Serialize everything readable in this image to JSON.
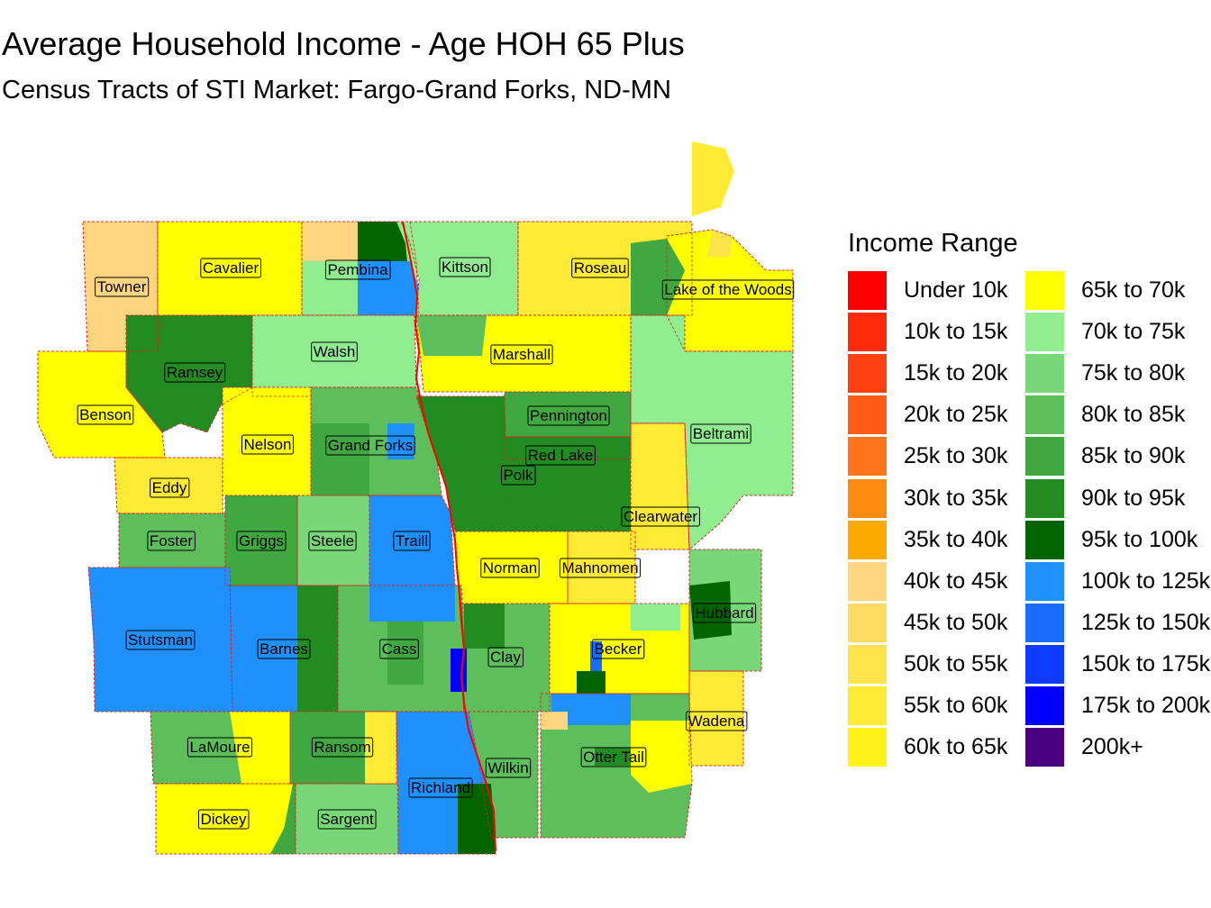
{
  "title": "Average Household Income - Age HOH 65 Plus",
  "subtitle": "Census Tracts of STI Market: Fargo-Grand Forks, ND-MN",
  "legend": {
    "title": "Income Range",
    "items": [
      {
        "label": "Under 10k",
        "color": "#ff0000"
      },
      {
        "label": "10k to 15k",
        "color": "#ff2a0a"
      },
      {
        "label": "15k to 20k",
        "color": "#ff4010"
      },
      {
        "label": "20k to 25k",
        "color": "#ff5a16"
      },
      {
        "label": "25k to 30k",
        "color": "#ff741c"
      },
      {
        "label": "30k to 35k",
        "color": "#ff8c10"
      },
      {
        "label": "35k to 40k",
        "color": "#ffaa00"
      },
      {
        "label": "40k to 45k",
        "color": "#ffd580"
      },
      {
        "label": "45k to 50k",
        "color": "#ffdb66"
      },
      {
        "label": "50k to 55k",
        "color": "#ffe34a"
      },
      {
        "label": "55k to 60k",
        "color": "#ffeb33"
      },
      {
        "label": "60k to 65k",
        "color": "#fff21a"
      },
      {
        "label": "65k to 70k",
        "color": "#ffff00"
      },
      {
        "label": "70k to 75k",
        "color": "#90ee90"
      },
      {
        "label": "75k to 80k",
        "color": "#78d878"
      },
      {
        "label": "80k to 85k",
        "color": "#5cbf5c"
      },
      {
        "label": "85k to 90k",
        "color": "#40a840"
      },
      {
        "label": "90k to 95k",
        "color": "#228b22"
      },
      {
        "label": "95k to 100k",
        "color": "#006400"
      },
      {
        "label": "100k to 125k",
        "color": "#1e90ff"
      },
      {
        "label": "125k to 150k",
        "color": "#1a6cff"
      },
      {
        "label": "150k to 175k",
        "color": "#0d3cff"
      },
      {
        "label": "175k to 200k",
        "color": "#0000ff"
      },
      {
        "label": "200k+",
        "color": "#4b0082"
      }
    ]
  },
  "counties": [
    {
      "name": "Towner",
      "color": "#ffd580"
    },
    {
      "name": "Cavalier",
      "color": "#ffff00"
    },
    {
      "name": "Pembina",
      "color": "#90ee90"
    },
    {
      "name": "Kittson",
      "color": "#90ee90"
    },
    {
      "name": "Roseau",
      "color": "#ffeb33"
    },
    {
      "name": "Lake of the Woods",
      "color": "#ffff00"
    },
    {
      "name": "Ramsey",
      "color": "#228b22"
    },
    {
      "name": "Walsh",
      "color": "#90ee90"
    },
    {
      "name": "Marshall",
      "color": "#ffff00"
    },
    {
      "name": "Benson",
      "color": "#ffff00"
    },
    {
      "name": "Pennington",
      "color": "#40a840"
    },
    {
      "name": "Beltrami",
      "color": "#90ee90"
    },
    {
      "name": "Nelson",
      "color": "#ffff00"
    },
    {
      "name": "Grand Forks",
      "color": "#5cbf5c"
    },
    {
      "name": "Red Lake",
      "color": "#ffeb33"
    },
    {
      "name": "Polk",
      "color": "#228b22"
    },
    {
      "name": "Eddy",
      "color": "#ffeb33"
    },
    {
      "name": "Clearwater",
      "color": "#ffeb33"
    },
    {
      "name": "Foster",
      "color": "#5cbf5c"
    },
    {
      "name": "Griggs",
      "color": "#40a840"
    },
    {
      "name": "Steele",
      "color": "#78d878"
    },
    {
      "name": "Traill",
      "color": "#1e90ff"
    },
    {
      "name": "Norman",
      "color": "#ffff00"
    },
    {
      "name": "Mahnomen",
      "color": "#ffeb33"
    },
    {
      "name": "Hubbard",
      "color": "#78d878"
    },
    {
      "name": "Stutsman",
      "color": "#1e90ff"
    },
    {
      "name": "Barnes",
      "color": "#1e90ff"
    },
    {
      "name": "Cass",
      "color": "#5cbf5c"
    },
    {
      "name": "Clay",
      "color": "#5cbf5c"
    },
    {
      "name": "Becker",
      "color": "#ffff00"
    },
    {
      "name": "Wadena",
      "color": "#ffeb33"
    },
    {
      "name": "LaMoure",
      "color": "#5cbf5c"
    },
    {
      "name": "Ransom",
      "color": "#40a840"
    },
    {
      "name": "Otter Tail",
      "color": "#5cbf5c"
    },
    {
      "name": "Wilkin",
      "color": "#5cbf5c"
    },
    {
      "name": "Richland",
      "color": "#1e90ff"
    },
    {
      "name": "Dickey",
      "color": "#ffff00"
    },
    {
      "name": "Sargent",
      "color": "#78d878"
    }
  ]
}
